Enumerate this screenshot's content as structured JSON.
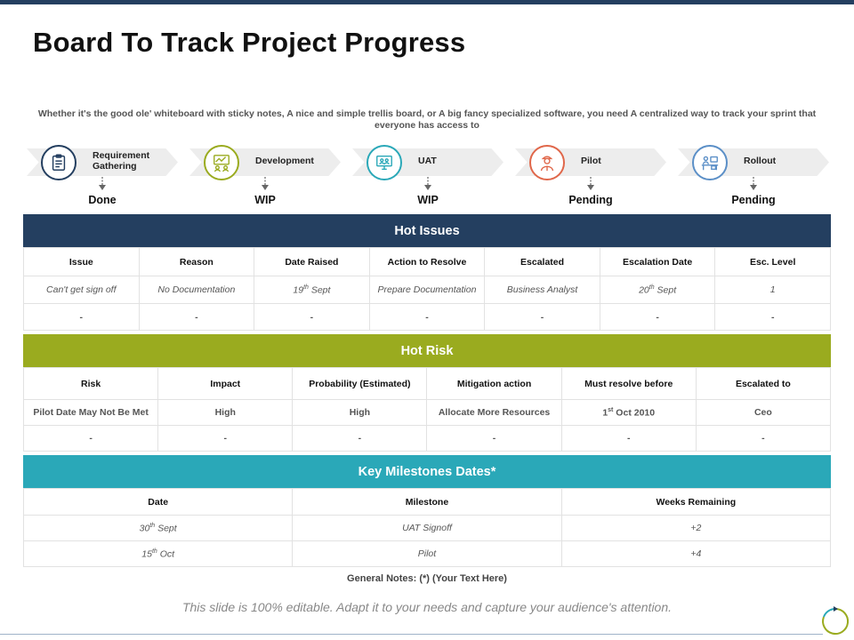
{
  "title": "Board To Track Project Progress",
  "subtitle": "Whether it's the good ole' whiteboard with sticky notes, A nice and simple trellis board, or A big fancy specialized software, you need A centralized way to track your sprint that everyone has access to",
  "steps": [
    {
      "label": "Requirement Gathering",
      "status": "Done",
      "icon": "clipboard-icon",
      "color": "#243f60"
    },
    {
      "label": "Development",
      "status": "WIP",
      "icon": "team-board-icon",
      "color": "#9aab1f"
    },
    {
      "label": "UAT",
      "status": "WIP",
      "icon": "monitor-users-icon",
      "color": "#2aa8b8"
    },
    {
      "label": "Pilot",
      "status": "Pending",
      "icon": "pilot-person-icon",
      "color": "#e0674a"
    },
    {
      "label": "Rollout",
      "status": "Pending",
      "icon": "office-desk-icon",
      "color": "#5b8fc7"
    }
  ],
  "hot_issues": {
    "title": "Hot Issues",
    "color": "#243f60",
    "headers": [
      "Issue",
      "Reason",
      "Date Raised",
      "Action to Resolve",
      "Escalated",
      "Escalation Date",
      "Esc. Level"
    ],
    "rows": [
      [
        "Can't get sign off",
        "No Documentation",
        "19th Sept",
        "Prepare Documentation",
        "Business Analyst",
        "20th Sept",
        "1"
      ],
      [
        "-",
        "-",
        "-",
        "-",
        "-",
        "-",
        "-"
      ]
    ]
  },
  "hot_risk": {
    "title": "Hot Risk",
    "color": "#9aab1f",
    "headers": [
      "Risk",
      "Impact",
      "Probability (Estimated)",
      "Mitigation action",
      "Must resolve before",
      "Escalated to"
    ],
    "rows": [
      [
        "Pilot Date May Not Be Met",
        "High",
        "High",
        "Allocate More Resources",
        "1st Oct 2010",
        "Ceo"
      ],
      [
        "-",
        "-",
        "-",
        "-",
        "-",
        "-"
      ]
    ]
  },
  "milestones": {
    "title": "Key Milestones Dates*",
    "color": "#2aa8b8",
    "headers": [
      "Date",
      "Milestone",
      "Weeks Remaining"
    ],
    "rows": [
      [
        "30th Sept",
        "UAT Signoff",
        "+2"
      ],
      [
        "15th Oct",
        "Pilot",
        "+4"
      ]
    ]
  },
  "general_notes": "General Notes: (*) (Your Text Here)",
  "footer": "This slide is 100% editable. Adapt it to your needs and capture your audience's attention."
}
